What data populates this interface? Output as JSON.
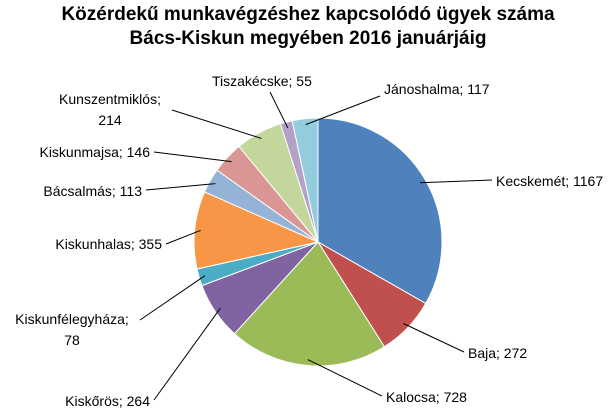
{
  "chart_data": {
    "type": "pie",
    "title": "Közérdekű munkavégzéshez kapcsolódó ügyek száma\nBács-Kiskun megyében 2016 januárjáig",
    "values": [
      1167,
      272,
      728,
      264,
      78,
      355,
      113,
      146,
      214,
      55,
      117
    ],
    "value_labels": [
      "Kecskemét; 1167",
      "Baja; 272",
      "Kalocsa; 728",
      "Kiskőrös; 264",
      "Kiskunfélegyháza;\n78",
      "Kiskunhalas; 355",
      "Bácsalmás; 113",
      "Kiskunmajsa; 146",
      "Kunszentmiklós;\n214",
      "Tiszakécske; 55",
      "Jánoshalma; 117"
    ],
    "colors": [
      "#4f81bd",
      "#c0504d",
      "#9bbb59",
      "#8064a2",
      "#4bacc6",
      "#f79646",
      "#95b3d7",
      "#d99694",
      "#c3d69b",
      "#b3a2c7",
      "#93cddd"
    ]
  }
}
